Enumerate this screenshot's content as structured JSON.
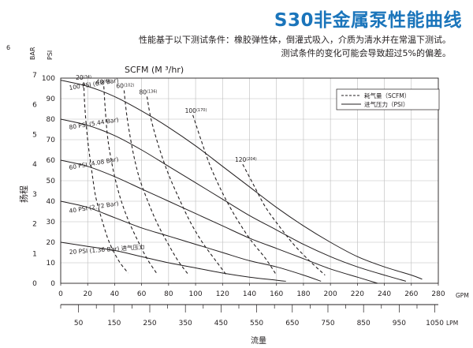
{
  "page": {
    "title": "S30非金属泵性能曲线",
    "note_line1": "性能基于以下测试条件：橡胶弹性体，倒灌式吸入，介质为清水并在常温下测试。",
    "note_line2": "测试条件的变化可能会导致超过5%的偏差。",
    "page_number": "6"
  },
  "chart_data": {
    "type": "line",
    "title": "S30非金属泵性能曲线",
    "flow_label": "流量",
    "head_label": "扬程",
    "left_axis_bar_label": "BAR",
    "left_axis_psi_label": "PSI",
    "scfm_label": "SCFM (M ³/hr)",
    "x_gpm": {
      "unit": "GPM",
      "min": 0,
      "max": 280,
      "ticks": [
        0,
        20,
        40,
        60,
        80,
        100,
        120,
        140,
        160,
        180,
        200,
        220,
        240,
        260,
        280
      ]
    },
    "x_lpm": {
      "unit": "LPM",
      "ticks": [
        50,
        150,
        250,
        350,
        450,
        550,
        650,
        750,
        850,
        950,
        1050
      ]
    },
    "y_psi": {
      "min": 0,
      "max": 100,
      "ticks": [
        0,
        10,
        20,
        30,
        40,
        50,
        60,
        70,
        80,
        90,
        100
      ]
    },
    "y_bar": {
      "min": 0,
      "max": 7,
      "ticks": [
        0,
        1,
        2,
        3,
        4,
        5,
        6,
        7
      ]
    },
    "grid": true,
    "legend": {
      "position": "top-right",
      "entries": [
        {
          "style": "dashed",
          "label": "耗气量（SCFM）"
        },
        {
          "style": "solid",
          "label": "进气压力（PSI）"
        }
      ]
    },
    "pressure_curves": [
      {
        "label": "100 PSI (6.8 Bar)",
        "points": [
          [
            0,
            99
          ],
          [
            20,
            96
          ],
          [
            40,
            91
          ],
          [
            60,
            84
          ],
          [
            80,
            76
          ],
          [
            100,
            67
          ],
          [
            120,
            57
          ],
          [
            140,
            47
          ],
          [
            160,
            37
          ],
          [
            180,
            28
          ],
          [
            200,
            20
          ],
          [
            220,
            13
          ],
          [
            240,
            8
          ],
          [
            260,
            4
          ],
          [
            268,
            2
          ]
        ]
      },
      {
        "label": "80 PSI (5.44 Bar)",
        "points": [
          [
            0,
            80
          ],
          [
            20,
            77
          ],
          [
            40,
            72
          ],
          [
            60,
            65
          ],
          [
            80,
            57
          ],
          [
            100,
            49
          ],
          [
            120,
            41
          ],
          [
            140,
            33
          ],
          [
            160,
            26
          ],
          [
            180,
            19
          ],
          [
            200,
            13
          ],
          [
            220,
            8
          ],
          [
            240,
            4
          ],
          [
            256,
            1
          ]
        ]
      },
      {
        "label": "60 PSI (4.08 Bar)",
        "points": [
          [
            0,
            60
          ],
          [
            20,
            57
          ],
          [
            40,
            52
          ],
          [
            60,
            46
          ],
          [
            80,
            40
          ],
          [
            100,
            34
          ],
          [
            120,
            28
          ],
          [
            140,
            22
          ],
          [
            160,
            17
          ],
          [
            180,
            12
          ],
          [
            200,
            7
          ],
          [
            220,
            3
          ],
          [
            235,
            0
          ]
        ]
      },
      {
        "label": "40 PSI (2.72 Bar)",
        "points": [
          [
            0,
            40
          ],
          [
            20,
            37
          ],
          [
            40,
            32
          ],
          [
            60,
            27
          ],
          [
            80,
            23
          ],
          [
            100,
            19
          ],
          [
            120,
            15
          ],
          [
            140,
            11
          ],
          [
            160,
            8
          ],
          [
            180,
            4
          ],
          [
            193,
            1
          ]
        ]
      },
      {
        "label": "20 PSI (1.36 Bar) 进气压力",
        "points": [
          [
            0,
            20
          ],
          [
            20,
            18
          ],
          [
            40,
            16
          ],
          [
            60,
            13
          ],
          [
            80,
            10
          ],
          [
            100,
            7.5
          ],
          [
            120,
            5
          ],
          [
            140,
            3
          ],
          [
            160,
            1.5
          ],
          [
            167,
            1
          ]
        ]
      }
    ],
    "scfm_curves": [
      {
        "label": "20",
        "label_m3": "(34)",
        "points": [
          [
            17,
            98
          ],
          [
            18,
            85
          ],
          [
            20,
            70
          ],
          [
            23,
            55
          ],
          [
            26,
            42
          ],
          [
            31,
            30
          ],
          [
            36,
            20
          ],
          [
            43,
            11
          ],
          [
            50,
            5
          ]
        ]
      },
      {
        "label": "40",
        "label_m3": "(68)",
        "points": [
          [
            32,
            96
          ],
          [
            33,
            85
          ],
          [
            35,
            70
          ],
          [
            39,
            55
          ],
          [
            44,
            42
          ],
          [
            50,
            31
          ],
          [
            57,
            21
          ],
          [
            64,
            12
          ],
          [
            71,
            5
          ]
        ]
      },
      {
        "label": "60",
        "label_m3": "(102)",
        "points": [
          [
            47,
            94
          ],
          [
            49,
            82
          ],
          [
            53,
            66
          ],
          [
            58,
            52
          ],
          [
            64,
            41
          ],
          [
            71,
            30
          ],
          [
            79,
            20
          ],
          [
            87,
            11
          ],
          [
            95,
            4
          ]
        ]
      },
      {
        "label": "80",
        "label_m3": "(136)",
        "points": [
          [
            64,
            91
          ],
          [
            67,
            80
          ],
          [
            73,
            66
          ],
          [
            80,
            53
          ],
          [
            88,
            41
          ],
          [
            96,
            30
          ],
          [
            105,
            20
          ],
          [
            115,
            11
          ],
          [
            123,
            4
          ]
        ]
      },
      {
        "label": "100",
        "label_m3": "(170)",
        "points": [
          [
            98,
            82
          ],
          [
            104,
            70
          ],
          [
            111,
            57
          ],
          [
            120,
            44
          ],
          [
            130,
            32
          ],
          [
            141,
            21
          ],
          [
            152,
            12
          ],
          [
            160,
            4
          ]
        ]
      },
      {
        "label": "120",
        "label_m3": "(204)",
        "points": [
          [
            135,
            58
          ],
          [
            143,
            48
          ],
          [
            152,
            37
          ],
          [
            163,
            27
          ],
          [
            174,
            18
          ],
          [
            186,
            10
          ],
          [
            196,
            4
          ]
        ]
      }
    ]
  },
  "colors": {
    "accent": "#1b75bb",
    "line": "#231f20",
    "grid": "#bcbcbc"
  }
}
